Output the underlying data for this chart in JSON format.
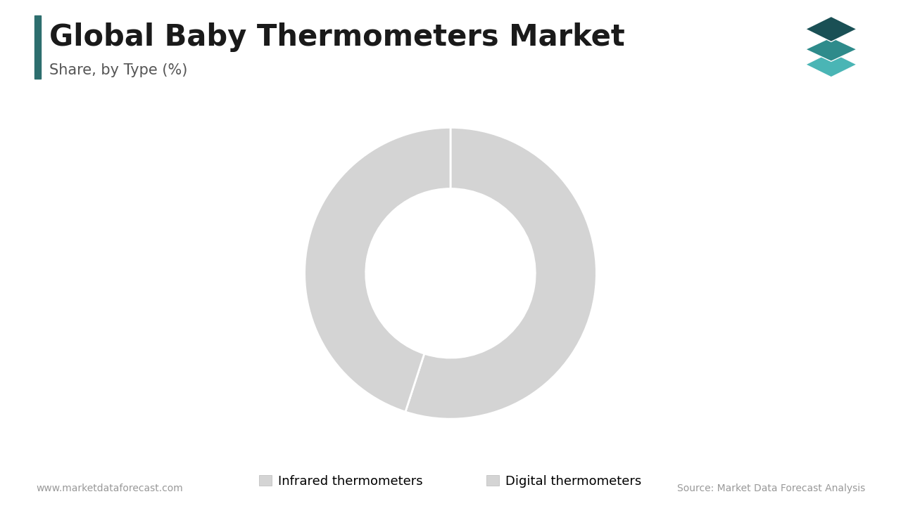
{
  "title": "Global Baby Thermometers Market",
  "subtitle": "Share, by Type (%)",
  "segments": [
    "Infrared thermometers",
    "Digital thermometers"
  ],
  "values": [
    55,
    45
  ],
  "colors": [
    "#d4d4d4",
    "#d4d4d4"
  ],
  "wedge_edge_color": "#ffffff",
  "donut_hole": 0.5,
  "background_color": "#ffffff",
  "title_fontsize": 30,
  "subtitle_fontsize": 15,
  "legend_fontsize": 13,
  "footer_left": "www.marketdataforecast.com",
  "footer_right": "Source: Market Data Forecast Analysis",
  "footer_fontsize": 10,
  "left_bar_color": "#2d6e6e",
  "icon_color_top": "#1a5055",
  "icon_color_mid": "#2e8b8b",
  "icon_color_bot": "#4ab5b5"
}
